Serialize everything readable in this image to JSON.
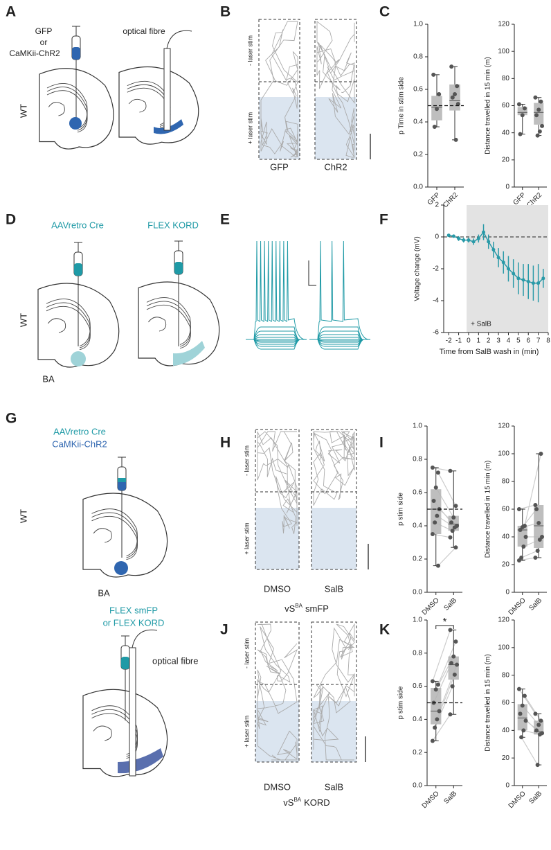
{
  "panel_labels": [
    "A",
    "B",
    "C",
    "D",
    "E",
    "F",
    "G",
    "H",
    "I",
    "J",
    "K"
  ],
  "diagrams": {
    "A": {
      "injection": [
        "GFP",
        "or",
        "CaMKii-ChR2"
      ],
      "fibre": "optical fibre",
      "mouse": "WT"
    },
    "D": {
      "injections": [
        "AAVretro Cre",
        "FLEX KORD"
      ],
      "mouse": "WT",
      "region": "BA"
    },
    "G": {
      "injection": [
        "AAVretro Cre",
        "CaMKii-ChR2"
      ],
      "mouse": "WT",
      "region": "BA",
      "injection2": [
        "FLEX smFP",
        "or FLEX KORD"
      ],
      "fibre": "optical fibre"
    }
  },
  "arenas": [
    {
      "top": "- laser stim",
      "bottom": "+ laser stim",
      "groups": [
        "GFP",
        "ChR2"
      ]
    },
    {
      "top": "- laser stim",
      "bottom": "+ laser stim",
      "groups": [
        "DMSO",
        "SalB"
      ],
      "caption": {
        "prefix": "vS",
        "sup": "BA",
        "suffix": "smFP"
      }
    },
    {
      "top": "- laser stim",
      "bottom": "+ laser stim",
      "groups": [
        "DMSO",
        "SalB"
      ],
      "caption": {
        "prefix": "vS",
        "sup": "BA",
        "suffix": "KORD"
      }
    }
  ],
  "chart_data": [
    {
      "type": "box",
      "ylabel": "p Time in stim side",
      "categories": [
        "GFP",
        "ChR2"
      ],
      "ylim": [
        0,
        1
      ],
      "yticks": [
        {
          "value": 0,
          "label": "0.0"
        },
        0.2,
        0.4,
        0.6,
        0.8,
        {
          "value": 1,
          "label": "1.0"
        }
      ],
      "hline": 0.5,
      "paired": false,
      "box_color": "#b3b3b3",
      "point_color": "#555555",
      "boxes": [
        {
          "whisker_low": 0.37,
          "q1": 0.41,
          "median": 0.49,
          "q3": 0.56,
          "whisker_high": 0.69,
          "points": [
            0.69,
            0.57,
            0.48,
            0.37
          ]
        },
        {
          "whisker_low": 0.29,
          "q1": 0.47,
          "median": 0.53,
          "q3": 0.63,
          "whisker_high": 0.74,
          "points": [
            0.74,
            0.62,
            0.57,
            0.55,
            0.51,
            0.29
          ]
        }
      ]
    },
    {
      "type": "box",
      "ylabel": "Distance travelled in 15 min (m)",
      "categories": [
        "GFP",
        "ChR2"
      ],
      "ylim": [
        0,
        120
      ],
      "yticks": [
        0,
        20,
        40,
        60,
        80,
        100,
        120
      ],
      "paired": false,
      "box_color": "#b3b3b3",
      "point_color": "#555555",
      "boxes": [
        {
          "whisker_low": 39,
          "q1": 53,
          "median": 55,
          "q3": 59,
          "whisker_high": 61,
          "points": [
            61,
            58,
            53,
            39
          ]
        },
        {
          "whisker_low": 38,
          "q1": 46,
          "median": 55,
          "q3": 62,
          "whisker_high": 66,
          "points": [
            66,
            63,
            57,
            53,
            45,
            41,
            38
          ]
        }
      ]
    },
    {
      "type": "line",
      "xlabel": "Time from SalB wash in (min)",
      "ylabel": "Voltage change (mV)",
      "color": "#2a9aa8",
      "x": [
        -2,
        -1.5,
        -1,
        -0.5,
        0,
        0.5,
        1,
        1.5,
        2,
        2.5,
        3,
        3.5,
        4,
        4.5,
        5,
        5.5,
        6,
        6.5,
        7,
        7.5
      ],
      "values": [
        0.1,
        0.05,
        -0.1,
        -0.2,
        -0.2,
        -0.3,
        -0.1,
        0.3,
        -0.3,
        -0.8,
        -1.3,
        -1.6,
        -2.0,
        -2.3,
        -2.6,
        -2.7,
        -2.8,
        -2.9,
        -2.9,
        -2.6
      ],
      "errors": [
        0.1,
        0.1,
        0.15,
        0.15,
        0.15,
        0.2,
        0.25,
        0.5,
        0.45,
        0.5,
        0.6,
        0.7,
        0.8,
        0.9,
        1.0,
        1.0,
        1.1,
        1.1,
        1.2,
        0.6
      ],
      "xlim": [
        -2.5,
        8
      ],
      "ylim": [
        -6,
        2
      ],
      "xticks": [
        -2,
        -1,
        0,
        1,
        2,
        3,
        4,
        5,
        6,
        7,
        8
      ],
      "yticks": [
        -6,
        -4,
        -2,
        0,
        2
      ],
      "hline": 0,
      "shade": {
        "from": -0.2,
        "to": 8,
        "label": "+ SalB"
      }
    },
    {
      "type": "box",
      "ylabel": "p stim side",
      "categories": [
        "DMSO",
        "SalB"
      ],
      "ylim": [
        0,
        1
      ],
      "yticks": [
        {
          "value": 0,
          "label": "0.0"
        },
        0.2,
        0.4,
        0.6,
        0.8,
        {
          "value": 1,
          "label": "1.0"
        }
      ],
      "hline": 0.5,
      "paired": true,
      "box_color": "#b3b3b3",
      "point_color": "#555555",
      "line_color": "#cccccc",
      "boxes": [
        {
          "whisker_low": 0.16,
          "q1": 0.35,
          "median": 0.5,
          "q3": 0.62,
          "whisker_high": 0.75,
          "points": [
            0.75,
            0.72,
            0.63,
            0.55,
            0.5,
            0.46,
            0.42,
            0.35,
            0.16
          ]
        },
        {
          "whisker_low": 0.27,
          "q1": 0.37,
          "median": 0.41,
          "q3": 0.46,
          "whisker_high": 0.73,
          "points": [
            0.73,
            0.52,
            0.45,
            0.42,
            0.4,
            0.39,
            0.37,
            0.33,
            0.27
          ]
        }
      ]
    },
    {
      "type": "box",
      "ylabel": "Distance travelled in 15 min (m)",
      "categories": [
        "DMSO",
        "SalB"
      ],
      "ylim": [
        0,
        120
      ],
      "yticks": [
        0,
        20,
        40,
        60,
        80,
        100,
        120
      ],
      "paired": true,
      "box_color": "#b3b3b3",
      "point_color": "#555555",
      "line_color": "#cccccc",
      "boxes": [
        {
          "whisker_low": 23,
          "q1": 33,
          "median": 45,
          "q3": 48,
          "whisker_high": 60,
          "points": [
            60,
            48,
            47,
            45,
            40,
            33,
            25,
            23
          ]
        },
        {
          "whisker_low": 25,
          "q1": 32,
          "median": 48,
          "q3": 63,
          "whisker_high": 100,
          "points": [
            63,
            100,
            50,
            60,
            40,
            38,
            30,
            25
          ]
        }
      ]
    },
    {
      "type": "box",
      "ylabel": "p stim side",
      "categories": [
        "DMSO",
        "SalB"
      ],
      "ylim": [
        0,
        1
      ],
      "yticks": [
        {
          "value": 0,
          "label": "0.0"
        },
        0.2,
        0.4,
        0.6,
        0.8,
        {
          "value": 1,
          "label": "1.0"
        }
      ],
      "hline": 0.5,
      "paired": true,
      "annotation": "*",
      "box_color": "#b3b3b3",
      "point_color": "#555555",
      "line_color": "#cccccc",
      "boxes": [
        {
          "whisker_low": 0.27,
          "q1": 0.37,
          "median": 0.45,
          "q3": 0.59,
          "whisker_high": 0.63,
          "points": [
            0.63,
            0.61,
            0.58,
            0.5,
            0.45,
            0.4,
            0.35,
            0.27
          ]
        },
        {
          "whisker_low": 0.43,
          "q1": 0.64,
          "median": 0.73,
          "q3": 0.78,
          "whisker_high": 0.94,
          "points": [
            0.94,
            0.87,
            0.78,
            0.74,
            0.73,
            0.67,
            0.6,
            0.43
          ]
        }
      ]
    },
    {
      "type": "box",
      "ylabel": "Distance travelled in 15 min (m)",
      "categories": [
        "DMSO",
        "SalB"
      ],
      "ylim": [
        0,
        120
      ],
      "yticks": [
        0,
        20,
        40,
        60,
        80,
        100,
        120
      ],
      "paired": true,
      "box_color": "#b3b3b3",
      "point_color": "#555555",
      "line_color": "#cccccc",
      "boxes": [
        {
          "whisker_low": 35,
          "q1": 40,
          "median": 49,
          "q3": 59,
          "whisker_high": 70,
          "points": [
            70,
            65,
            58,
            52,
            47,
            40,
            35
          ]
        },
        {
          "whisker_low": 15,
          "q1": 37,
          "median": 39,
          "q3": 47,
          "whisker_high": 52,
          "points": [
            52,
            47,
            44,
            40,
            38,
            37,
            15
          ]
        }
      ]
    }
  ]
}
